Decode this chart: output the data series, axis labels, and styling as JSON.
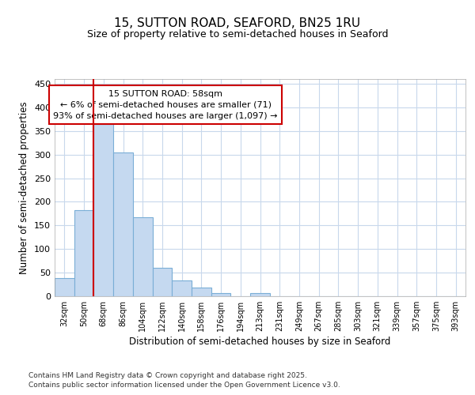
{
  "title": "15, SUTTON ROAD, SEAFORD, BN25 1RU",
  "subtitle": "Size of property relative to semi-detached houses in Seaford",
  "xlabel": "Distribution of semi-detached houses by size in Seaford",
  "ylabel": "Number of semi-detached properties",
  "categories": [
    "32sqm",
    "50sqm",
    "68sqm",
    "86sqm",
    "104sqm",
    "122sqm",
    "140sqm",
    "158sqm",
    "176sqm",
    "194sqm",
    "213sqm",
    "231sqm",
    "249sqm",
    "267sqm",
    "285sqm",
    "303sqm",
    "321sqm",
    "339sqm",
    "357sqm",
    "375sqm",
    "393sqm"
  ],
  "values": [
    38,
    183,
    365,
    305,
    167,
    60,
    33,
    19,
    7,
    0,
    6,
    0,
    0,
    0,
    0,
    0,
    0,
    0,
    0,
    0,
    0
  ],
  "bar_color": "#c5d9f0",
  "bar_edge_color": "#7aaed6",
  "vline_color": "#cc0000",
  "vline_position": 1.5,
  "annotation_text": "15 SUTTON ROAD: 58sqm\n← 6% of semi-detached houses are smaller (71)\n93% of semi-detached houses are larger (1,097) →",
  "annotation_box_color": "#ffffff",
  "annotation_box_edge_color": "#cc0000",
  "ylim": [
    0,
    460
  ],
  "yticks": [
    0,
    50,
    100,
    150,
    200,
    250,
    300,
    350,
    400,
    450
  ],
  "bg_color": "#ffffff",
  "grid_color": "#c8d8ec",
  "footer_line1": "Contains HM Land Registry data © Crown copyright and database right 2025.",
  "footer_line2": "Contains public sector information licensed under the Open Government Licence v3.0."
}
